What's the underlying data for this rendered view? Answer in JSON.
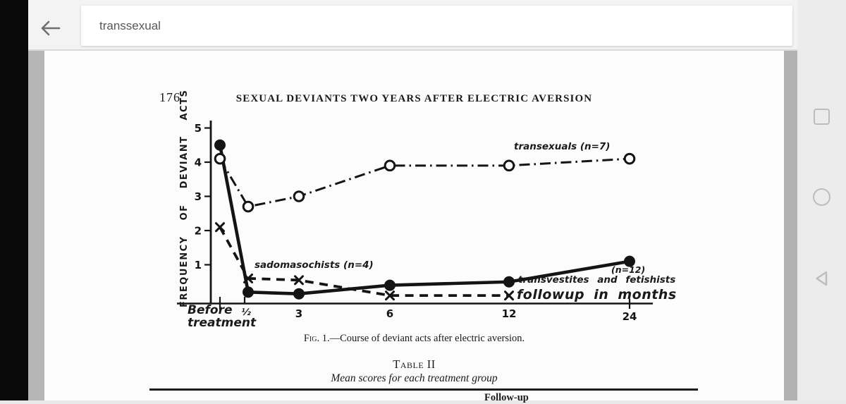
{
  "topbar": {
    "search_value": "transsexual"
  },
  "page": {
    "page_number": "176",
    "running_head": "SEXUAL DEVIANTS TWO YEARS AFTER ELECTRIC AVERSION",
    "figure_caption_prefix": "Fig. 1.",
    "figure_caption_rest": "—Course of deviant acts after electric aversion.",
    "table_label": "Table II",
    "table_subtitle": "Mean scores for each treatment group",
    "clipped_bottom_text": "Follow-up"
  },
  "colors": {
    "ink": "#141414",
    "page_bg": "#fcfcfc",
    "topbar_bg": "#f3f3f3",
    "chrome_bg": "#ececec"
  },
  "chart_data": {
    "type": "line",
    "title": "",
    "ylabel": "FREQUENCY OF DEVIANT ACTS",
    "xlabel": "followup in months",
    "categories": [
      "Before treatment",
      "½",
      "3",
      "6",
      "12",
      "24"
    ],
    "y_ticks": [
      5,
      4,
      3,
      2,
      1
    ],
    "ylim": [
      0,
      5
    ],
    "grid": false,
    "legend": "inline-annotations",
    "before_label_line1": "Before",
    "before_label_line2": "treatment",
    "series": [
      {
        "name": "transexuals",
        "label": "transexuals (n=7)",
        "line": "dash-dot",
        "marker": "open-circle",
        "values": [
          4.1,
          2.7,
          3.0,
          3.9,
          3.9,
          4.1
        ]
      },
      {
        "name": "transvestites and fetishists",
        "label": "transvestites and fetishists",
        "n_label": "(n=12)",
        "line": "solid",
        "marker": "filled-circle",
        "values": [
          4.5,
          0.2,
          0.15,
          0.4,
          0.5,
          1.1
        ]
      },
      {
        "name": "sadomasochists",
        "label": "sadomasochists (n=4)",
        "line": "dashed",
        "marker": "x",
        "values": [
          2.1,
          0.6,
          0.55,
          0.1,
          0.1,
          null
        ]
      }
    ]
  }
}
